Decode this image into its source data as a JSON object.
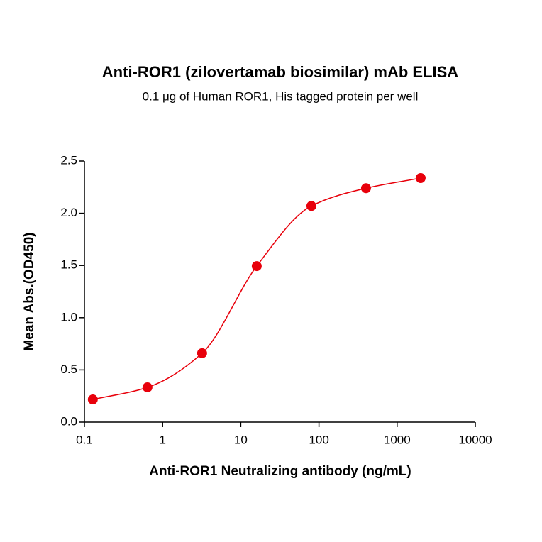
{
  "chart_data": {
    "type": "scatter",
    "title": "Anti-ROR1 (zilovertamab biosimilar) mAb ELISA",
    "subtitle": "0.1 μg of Human ROR1, His tagged protein per well",
    "x_label": "Anti-ROR1 Neutralizing antibody (ng/mL)",
    "y_label": "Mean Abs.(OD450)",
    "x": [
      0.128,
      0.64,
      3.2,
      16,
      80,
      400,
      2000
    ],
    "values": [
      0.217,
      0.333,
      0.66,
      1.494,
      2.07,
      2.24,
      2.337
    ],
    "color": "#e8000b",
    "line": true,
    "xscale": "log",
    "xlim": [
      0.1,
      10000
    ],
    "xticks": [
      0.1,
      1,
      10,
      100,
      1000,
      10000
    ],
    "ylim": [
      0,
      2.5
    ],
    "yticks": [
      {
        "value": 0,
        "label": "0.0"
      },
      0.5,
      {
        "value": 1,
        "label": "1.0"
      },
      1.5,
      {
        "value": 2,
        "label": "2.0"
      },
      2.5
    ],
    "grid": false
  }
}
